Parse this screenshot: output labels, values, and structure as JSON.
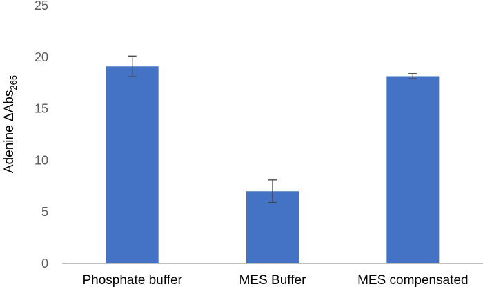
{
  "chart_data": {
    "type": "bar",
    "title": "",
    "xlabel": "",
    "ylabel": "Adenine ΔAbs",
    "ylabel_subscript": "265",
    "categories": [
      "Phosphate buffer",
      "MES Buffer",
      "MES compensated"
    ],
    "values": [
      19.1,
      7.0,
      18.15
    ],
    "errors": [
      1.0,
      1.1,
      0.25
    ],
    "ylim": [
      0,
      25
    ],
    "yticks": [
      0,
      5,
      10,
      15,
      20,
      25
    ],
    "grid": false,
    "legend": "none",
    "colors": {
      "bar": "#4472C4",
      "error_bar": "#404040",
      "axis": "#BFBFBF"
    }
  }
}
